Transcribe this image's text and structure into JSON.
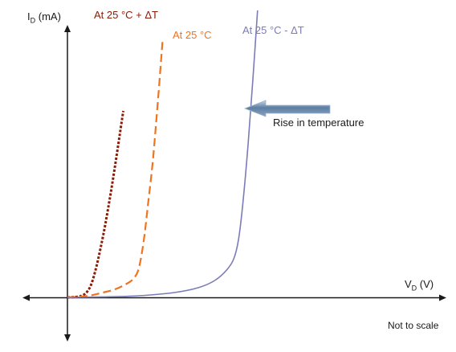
{
  "chart_data": {
    "type": "line",
    "title": "",
    "ylabel_main": "I",
    "ylabel_sub": "D",
    "ylabel_unit": " (mA)",
    "xlabel_main": "V",
    "xlabel_sub": "D",
    "xlabel_unit": " (V)",
    "grid": false,
    "legend": "none",
    "series": [
      {
        "name": "At 25 °C + ΔT",
        "color": "#8b1a06",
        "style": "dotted",
        "x": [
          0,
          0.02,
          0.04,
          0.06,
          0.08,
          0.1,
          0.12,
          0.14,
          0.16,
          0.18,
          0.2,
          0.22,
          0.235
        ],
        "y": [
          0,
          0.2,
          0.7,
          2.1,
          6,
          16,
          36,
          62,
          92,
          126,
          163,
          202,
          232
        ]
      },
      {
        "name": "At 25 °C",
        "color": "#f07320",
        "style": "dashed",
        "x": [
          0,
          0.05,
          0.1,
          0.15,
          0.2,
          0.25,
          0.28,
          0.3,
          0.32,
          0.34,
          0.36,
          0.38,
          0.4
        ],
        "y": [
          0,
          0.8,
          2.5,
          6,
          10,
          17,
          24,
          36,
          68,
          118,
          172,
          242,
          318
        ]
      },
      {
        "name": "At 25 °C - ΔT",
        "color": "#7a7bb8",
        "style": "solid",
        "x": [
          0,
          0.15,
          0.3,
          0.45,
          0.55,
          0.62,
          0.67,
          0.7,
          0.72,
          0.74,
          0.76,
          0.78,
          0.8
        ],
        "y": [
          0,
          0.6,
          2,
          6,
          12,
          21,
          34,
          48,
          72,
          122,
          190,
          270,
          357
        ]
      }
    ],
    "annotation": "Rise in temperature",
    "note": "Not to scale"
  }
}
